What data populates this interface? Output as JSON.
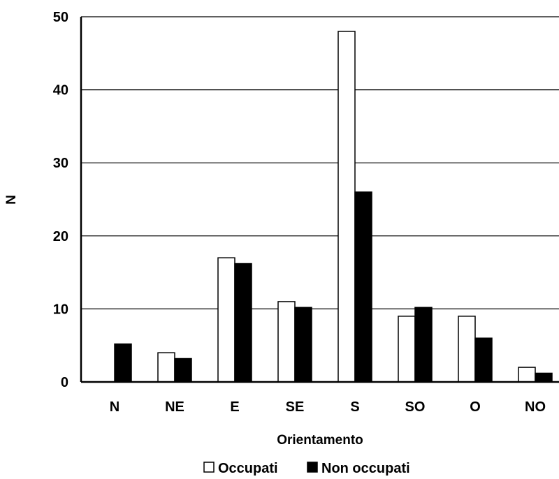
{
  "chart_data": {
    "type": "bar",
    "xlabel": "Orientamento",
    "ylabel": "N",
    "ylim": [
      0,
      50
    ],
    "yticks": [
      0,
      10,
      20,
      30,
      40,
      50
    ],
    "grid": true,
    "legend_position": "bottom",
    "categories": [
      "N",
      "NE",
      "E",
      "SE",
      "S",
      "SO",
      "O",
      "NO"
    ],
    "series": [
      {
        "name": "Occupati",
        "color": "#ffffff",
        "values": [
          0,
          4,
          17,
          11,
          48,
          9,
          9,
          2
        ]
      },
      {
        "name": "Non occupati",
        "color": "#000000",
        "values": [
          5.2,
          3.2,
          16.2,
          10.2,
          26,
          10.2,
          6,
          1.2
        ]
      }
    ]
  }
}
